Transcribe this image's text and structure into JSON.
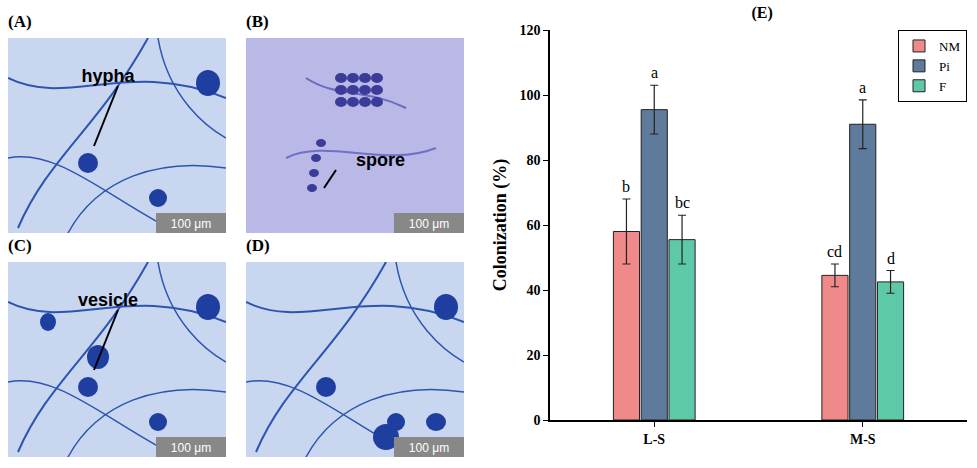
{
  "panels": [
    {
      "label": "(A)",
      "annotation": "hypha",
      "scale_bar": "100 μm"
    },
    {
      "label": "(B)",
      "annotation": "spore",
      "scale_bar": "100 μm"
    },
    {
      "label": "(C)",
      "annotation": "vesicle",
      "scale_bar": "100 μm"
    },
    {
      "label": "(D)",
      "scale_bar": "100 μm"
    }
  ],
  "chart_data": {
    "type": "bar",
    "title": "(E)",
    "y_label": "Colonization (%)",
    "categories": [
      "L-S",
      "M-S"
    ],
    "series": [
      {
        "name": "NM",
        "color": "#f08a8a",
        "values": [
          58,
          44.5
        ],
        "errors": [
          10,
          3.5
        ],
        "letters": [
          "b",
          "cd"
        ]
      },
      {
        "name": "Pi",
        "color": "#5e7b9c",
        "values": [
          95.5,
          91
        ],
        "errors": [
          7.5,
          7.5
        ],
        "letters": [
          "a",
          "a"
        ]
      },
      {
        "name": "F",
        "color": "#5ec9a9",
        "values": [
          55.5,
          42.5
        ],
        "errors": [
          7.5,
          3.5
        ],
        "letters": [
          "bc",
          "d"
        ]
      }
    ],
    "ylim": [
      0,
      120
    ],
    "yticks": [
      0,
      20,
      40,
      60,
      80,
      100,
      120
    ],
    "grid": false,
    "legend": "top-right"
  }
}
